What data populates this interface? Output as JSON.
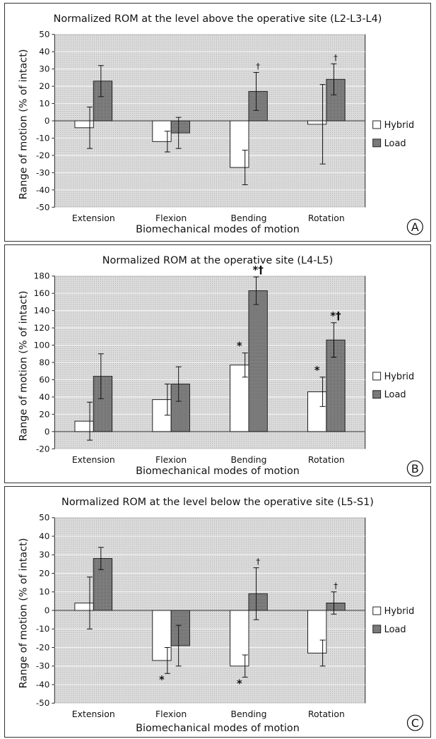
{
  "legend": {
    "hybrid_label": "Hybrid",
    "load_label": "Load"
  },
  "colors": {
    "hybrid": "#ffffff",
    "load": "#7a7a7a",
    "plot_bg": "#d7d7d7",
    "grid": "#f4f4f4",
    "axis": "#222222"
  },
  "chart_data": [
    {
      "type": "bar",
      "panel_label": "A",
      "title": "Normalized ROM at the level above the operative site (L2-L3-L4)",
      "xlabel": "Biomechanical modes of motion",
      "ylabel": "Range of motion (% of intact)",
      "ylim": [
        -50,
        50
      ],
      "tick_step": 10,
      "categories": [
        "Extension",
        "Flexion",
        "Bending",
        "Rotation"
      ],
      "series": [
        {
          "name": "Hybrid",
          "values": [
            -4,
            -12,
            -27,
            -2
          ],
          "errors": [
            12,
            6,
            10,
            23
          ]
        },
        {
          "name": "Load",
          "values": [
            23,
            -7,
            17,
            24
          ],
          "errors": [
            9,
            9,
            11,
            9
          ]
        }
      ],
      "annotations": [
        {
          "series": 1,
          "category": 2,
          "mark": "†"
        },
        {
          "series": 1,
          "category": 3,
          "mark": "†"
        }
      ]
    },
    {
      "type": "bar",
      "panel_label": "B",
      "title": "Normalized ROM at the operative site (L4-L5)",
      "xlabel": "Biomechanical modes of motion",
      "ylabel": "Range of motion (% of intact)",
      "ylim": [
        -20,
        180
      ],
      "tick_step": 20,
      "categories": [
        "Extension",
        "Flexion",
        "Bending",
        "Rotation"
      ],
      "series": [
        {
          "name": "Hybrid",
          "values": [
            12,
            37,
            77,
            46
          ],
          "errors": [
            22,
            18,
            14,
            17
          ]
        },
        {
          "name": "Load",
          "values": [
            64,
            55,
            163,
            106
          ],
          "errors": [
            26,
            20,
            16,
            20
          ]
        }
      ],
      "annotations": [
        {
          "series": 0,
          "category": 2,
          "mark": "*"
        },
        {
          "series": 0,
          "category": 3,
          "mark": "*"
        },
        {
          "series": 1,
          "category": 2,
          "mark": "*†"
        },
        {
          "series": 1,
          "category": 3,
          "mark": "*†"
        }
      ]
    },
    {
      "type": "bar",
      "panel_label": "C",
      "title": "Normalized ROM at the level below the operative site (L5-S1)",
      "xlabel": "Biomechanical modes of motion",
      "ylabel": "Range of motion (% of intact)",
      "ylim": [
        -50,
        50
      ],
      "tick_step": 10,
      "categories": [
        "Extension",
        "Flexion",
        "Bending",
        "Rotation"
      ],
      "series": [
        {
          "name": "Hybrid",
          "values": [
            4,
            -27,
            -30,
            -23
          ],
          "errors": [
            14,
            7,
            6,
            7
          ]
        },
        {
          "name": "Load",
          "values": [
            28,
            -19,
            9,
            4
          ],
          "errors": [
            6,
            11,
            14,
            6
          ]
        }
      ],
      "annotations": [
        {
          "series": 0,
          "category": 1,
          "mark": "*"
        },
        {
          "series": 0,
          "category": 2,
          "mark": "*"
        },
        {
          "series": 1,
          "category": 2,
          "mark": "†"
        },
        {
          "series": 1,
          "category": 3,
          "mark": "†"
        }
      ]
    }
  ]
}
